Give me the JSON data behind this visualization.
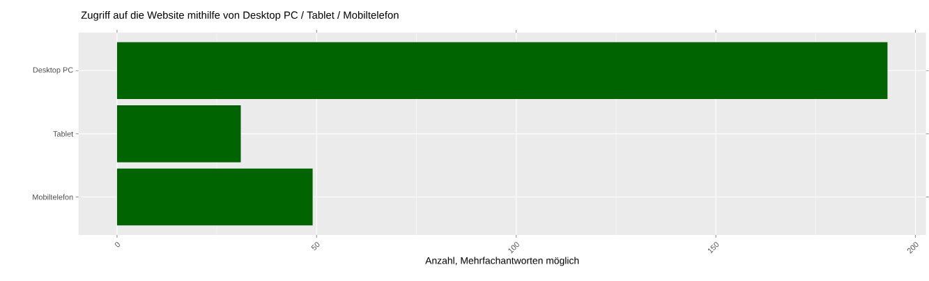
{
  "chart_data": {
    "type": "bar",
    "orientation": "horizontal",
    "title": "Zugriff auf die Website mithilfe von Desktop PC / Tablet / Mobiltelefon",
    "xlabel": "Anzahl, Mehrfachantworten möglich",
    "categories": [
      "Desktop PC",
      "Tablet",
      "Mobiltelefon"
    ],
    "values": [
      193,
      31,
      49
    ],
    "color": "#006400",
    "xlim": [
      -9.65,
      202.65
    ],
    "xticks": [
      0,
      50,
      100,
      150,
      200
    ],
    "grid": true
  }
}
